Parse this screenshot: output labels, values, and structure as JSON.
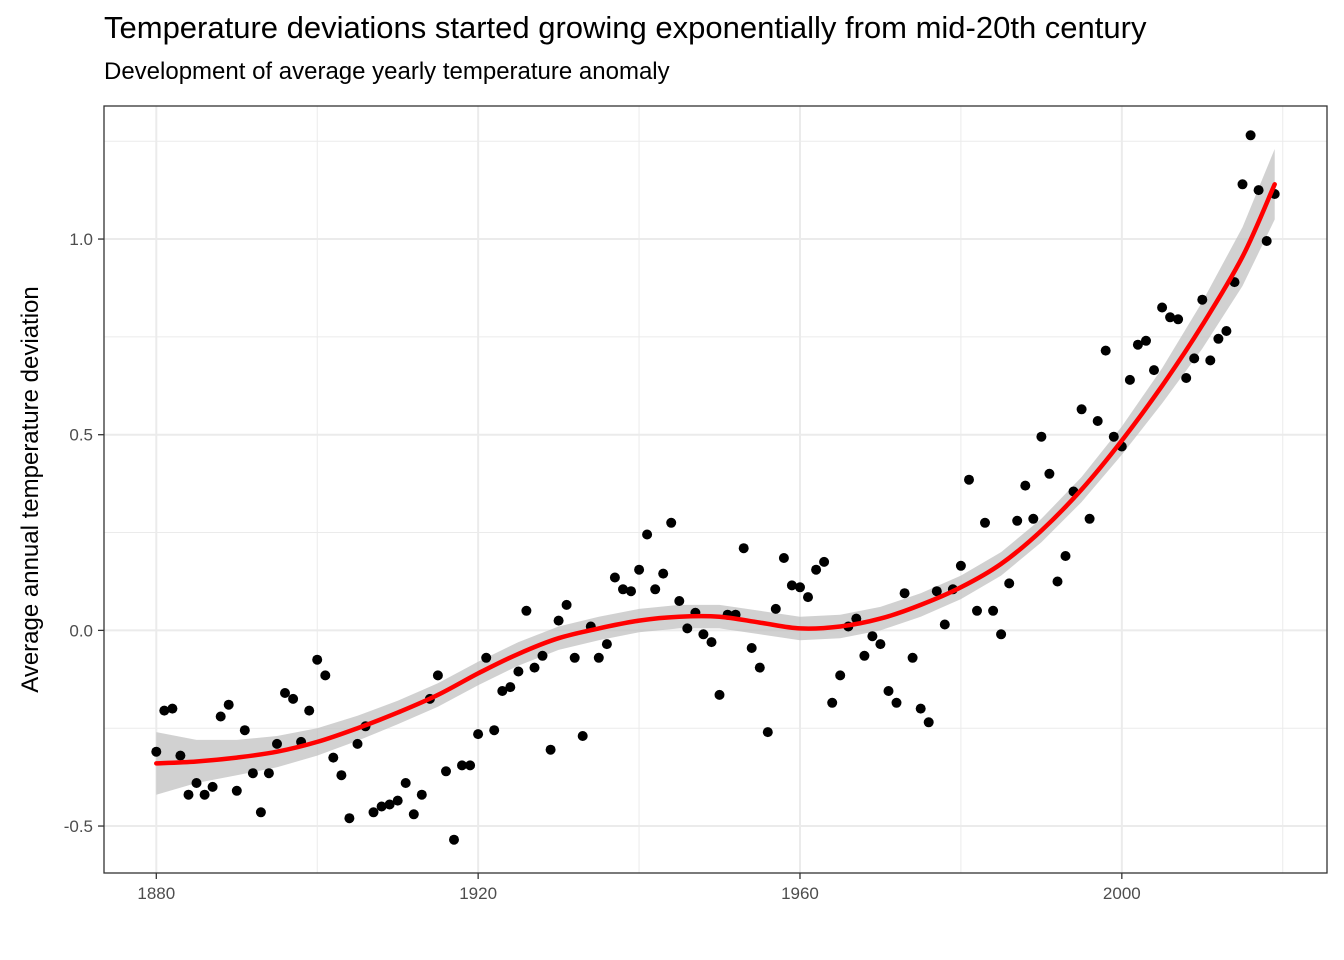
{
  "chart_data": {
    "type": "scatter",
    "title": "Temperature deviations started growing exponentially from mid-20th century",
    "subtitle": "Development of average yearly temperature anomaly",
    "xlabel": "",
    "ylabel": "Average annual temperature deviation",
    "xlim": [
      1873.5,
      2025.5
    ],
    "ylim": [
      -0.62,
      1.34
    ],
    "x_ticks": [
      1880,
      1920,
      1960,
      2000
    ],
    "x_tick_labels": [
      "1880",
      "1920",
      "1960",
      "2000"
    ],
    "y_ticks": [
      -0.5,
      0.0,
      0.5,
      1.0
    ],
    "y_tick_labels": [
      "-0.5",
      "0.0",
      "0.5",
      "1.0"
    ],
    "grid": true,
    "colors": {
      "points": "#000000",
      "smooth_line": "#ff0000",
      "confidence_band": "#bebebe",
      "grid": "#ebebeb",
      "panel_border": "#333333"
    },
    "series": [
      {
        "type": "points",
        "x": [
          1880,
          1881,
          1882,
          1883,
          1884,
          1885,
          1886,
          1887,
          1888,
          1889,
          1890,
          1891,
          1892,
          1893,
          1894,
          1895,
          1896,
          1897,
          1898,
          1899,
          1900,
          1901,
          1902,
          1903,
          1904,
          1905,
          1906,
          1907,
          1908,
          1909,
          1910,
          1911,
          1912,
          1913,
          1914,
          1915,
          1916,
          1917,
          1918,
          1919,
          1920,
          1921,
          1922,
          1923,
          1924,
          1925,
          1926,
          1927,
          1928,
          1929,
          1930,
          1931,
          1932,
          1933,
          1934,
          1935,
          1936,
          1937,
          1938,
          1939,
          1940,
          1941,
          1942,
          1943,
          1944,
          1945,
          1946,
          1947,
          1948,
          1949,
          1950,
          1951,
          1952,
          1953,
          1954,
          1955,
          1956,
          1957,
          1958,
          1959,
          1960,
          1961,
          1962,
          1963,
          1964,
          1965,
          1966,
          1967,
          1968,
          1969,
          1970,
          1971,
          1972,
          1973,
          1974,
          1975,
          1976,
          1977,
          1978,
          1979,
          1980,
          1981,
          1982,
          1983,
          1984,
          1985,
          1986,
          1987,
          1988,
          1989,
          1990,
          1991,
          1992,
          1993,
          1994,
          1995,
          1996,
          1997,
          1998,
          1999,
          2000,
          2001,
          2002,
          2003,
          2004,
          2005,
          2006,
          2007,
          2008,
          2009,
          2010,
          2011,
          2012,
          2013,
          2014,
          2015,
          2016,
          2017,
          2018,
          2019
        ],
        "y": [
          -0.31,
          -0.205,
          -0.2,
          -0.32,
          -0.42,
          -0.39,
          -0.42,
          -0.4,
          -0.22,
          -0.19,
          -0.41,
          -0.255,
          -0.365,
          -0.465,
          -0.365,
          -0.29,
          -0.16,
          -0.175,
          -0.285,
          -0.205,
          -0.075,
          -0.115,
          -0.325,
          -0.37,
          -0.48,
          -0.29,
          -0.245,
          -0.465,
          -0.45,
          -0.445,
          -0.435,
          -0.39,
          -0.47,
          -0.42,
          -0.175,
          -0.115,
          -0.36,
          -0.535,
          -0.345,
          -0.345,
          -0.265,
          -0.07,
          -0.255,
          -0.155,
          -0.145,
          -0.105,
          0.05,
          -0.095,
          -0.065,
          -0.305,
          0.025,
          0.065,
          -0.07,
          -0.27,
          0.01,
          -0.07,
          -0.035,
          0.135,
          0.105,
          0.1,
          0.155,
          0.245,
          0.105,
          0.145,
          0.275,
          0.075,
          0.005,
          0.045,
          -0.01,
          -0.03,
          -0.165,
          0.04,
          0.04,
          0.21,
          -0.045,
          -0.095,
          -0.26,
          0.055,
          0.185,
          0.115,
          0.11,
          0.085,
          0.155,
          0.175,
          -0.185,
          -0.115,
          0.01,
          0.03,
          -0.065,
          -0.015,
          -0.035,
          -0.155,
          -0.185,
          0.095,
          -0.07,
          -0.2,
          -0.235,
          0.1,
          0.015,
          0.105,
          0.165,
          0.385,
          0.05,
          0.275,
          0.05,
          -0.01,
          0.12,
          0.28,
          0.37,
          0.285,
          0.495,
          0.4,
          0.125,
          0.19,
          0.355,
          0.565,
          0.285,
          0.535,
          0.715,
          0.495,
          0.47,
          0.64,
          0.73,
          0.74,
          0.665,
          0.825,
          0.8,
          0.795,
          0.645,
          0.695,
          0.845,
          0.69,
          0.745,
          0.765,
          0.89,
          1.14,
          1.265,
          1.125,
          0.995,
          1.115
        ]
      },
      {
        "type": "smooth",
        "x": [
          1880,
          1885,
          1890,
          1895,
          1900,
          1905,
          1910,
          1915,
          1920,
          1925,
          1930,
          1935,
          1940,
          1945,
          1950,
          1955,
          1960,
          1965,
          1970,
          1975,
          1980,
          1985,
          1990,
          1995,
          2000,
          2005,
          2010,
          2015,
          2019
        ],
        "y": [
          -0.34,
          -0.335,
          -0.325,
          -0.31,
          -0.285,
          -0.25,
          -0.21,
          -0.165,
          -0.11,
          -0.06,
          -0.02,
          0.005,
          0.025,
          0.035,
          0.035,
          0.02,
          0.005,
          0.01,
          0.03,
          0.065,
          0.11,
          0.17,
          0.255,
          0.36,
          0.485,
          0.625,
          0.78,
          0.955,
          1.14
        ],
        "band_width": [
          0.08,
          0.055,
          0.045,
          0.04,
          0.035,
          0.032,
          0.03,
          0.03,
          0.03,
          0.03,
          0.03,
          0.03,
          0.03,
          0.03,
          0.03,
          0.03,
          0.03,
          0.03,
          0.03,
          0.03,
          0.03,
          0.03,
          0.03,
          0.032,
          0.036,
          0.045,
          0.06,
          0.075,
          0.09
        ]
      }
    ]
  }
}
